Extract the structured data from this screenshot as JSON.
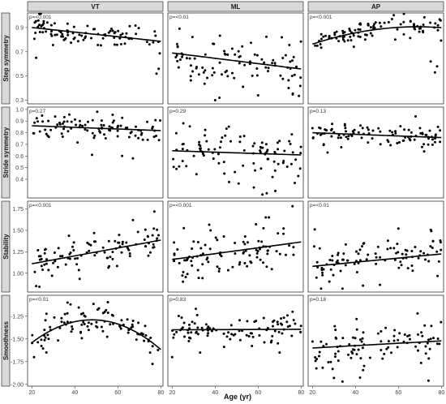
{
  "chart_data": {
    "type": "scatter",
    "xlabel": "Age (yr)",
    "x_ticks": [
      20,
      40,
      60,
      80
    ],
    "xlim": [
      18,
      81
    ],
    "columns": [
      "VT",
      "ML",
      "AP"
    ],
    "rows": [
      {
        "label": "Step symmetry",
        "ylim": [
          0.27,
          1.02
        ],
        "y_ticks": [
          "0.3",
          "0.5",
          "0.7",
          "0.9"
        ]
      },
      {
        "label": "Stride symmetry",
        "ylim": [
          0.24,
          1.02
        ],
        "y_ticks": [
          "0.4",
          "0.5",
          "0.6",
          "0.7",
          "0.8",
          "0.9",
          "1.0"
        ]
      },
      {
        "label": "Stability",
        "ylim": [
          0.78,
          1.84
        ],
        "y_ticks": [
          "1.00",
          "1.25",
          "1.50",
          "1.75"
        ]
      },
      {
        "label": "Smoothness",
        "ylim": [
          -2.02,
          -1.02
        ],
        "y_ticks": [
          "-2.00",
          "-1.75",
          "-1.50",
          "-1.25"
        ]
      }
    ],
    "panels": [
      {
        "row": 0,
        "col": 0,
        "p": "p=<0.001",
        "fit": [
          0.9,
          -0.0019,
          0
        ],
        "band": 0.085,
        "spread": 0.05,
        "seed": 11,
        "outliers": [
          [
            78,
            0.52
          ],
          [
            79,
            0.56
          ],
          [
            22,
            0.65
          ]
        ]
      },
      {
        "row": 0,
        "col": 1,
        "p": "p=<0.01",
        "fit": [
          0.69,
          -0.0022,
          0
        ],
        "band": 0.17,
        "spread": 0.1,
        "seed": 23,
        "outliers": [
          [
            40,
            0.3
          ],
          [
            42,
            0.32
          ],
          [
            60,
            0.34
          ]
        ]
      },
      {
        "row": 0,
        "col": 2,
        "p": "p=<0.001",
        "fit": [
          0.81,
          0.0025,
          -6e-05
        ],
        "band": 0.08,
        "spread": 0.045,
        "seed": 37,
        "outliers": [
          [
            77,
            0.53
          ],
          [
            78,
            0.58
          ],
          [
            75,
            0.62
          ]
        ]
      },
      {
        "row": 1,
        "col": 0,
        "p": "p=0.27",
        "fit": [
          0.86,
          -0.0007,
          0
        ],
        "band": 0.09,
        "spread": 0.055,
        "seed": 41,
        "outliers": [
          [
            48,
            0.61
          ],
          [
            62,
            0.6
          ],
          [
            67,
            0.58
          ]
        ]
      },
      {
        "row": 1,
        "col": 1,
        "p": "p=0.29",
        "fit": [
          0.645,
          -0.0006,
          0
        ],
        "band": 0.17,
        "spread": 0.11,
        "seed": 53,
        "outliers": [
          [
            62,
            0.27
          ],
          [
            64,
            0.28
          ],
          [
            68,
            0.3
          ]
        ]
      },
      {
        "row": 1,
        "col": 2,
        "p": "p=0.13",
        "fit": [
          0.8,
          -0.0007,
          0
        ],
        "band": 0.085,
        "spread": 0.05,
        "seed": 67,
        "outliers": [
          [
            27,
            0.63
          ],
          [
            72,
            0.64
          ],
          [
            68,
            0.94
          ]
        ]
      },
      {
        "row": 2,
        "col": 0,
        "p": "p=<0.001",
        "fit": [
          1.11,
          0.0046,
          0
        ],
        "band": 0.2,
        "spread": 0.11,
        "seed": 71,
        "outliers": [
          [
            77,
            1.72
          ],
          [
            22,
            0.85
          ],
          [
            67,
            1.62
          ]
        ]
      },
      {
        "row": 2,
        "col": 1,
        "p": "p=<0.001",
        "fit": [
          1.16,
          0.0034,
          0
        ],
        "band": 0.25,
        "spread": 0.14,
        "seed": 83,
        "outliers": [
          [
            76,
            1.78
          ],
          [
            59,
            1.57
          ],
          [
            25,
            0.9
          ]
        ]
      },
      {
        "row": 2,
        "col": 2,
        "p": "p=<0.01",
        "fit": [
          1.08,
          0.0024,
          0
        ],
        "band": 0.25,
        "spread": 0.14,
        "seed": 97,
        "outliers": [
          [
            60,
            1.52
          ],
          [
            24,
            0.82
          ],
          [
            34,
            0.82
          ]
        ]
      },
      {
        "row": 3,
        "col": 0,
        "p": "p=<0.01",
        "fit": [
          -1.29,
          0,
          -0.00032
        ],
        "band": 0.16,
        "spread": 0.09,
        "seed": 101,
        "outliers": [
          [
            21,
            -1.7
          ],
          [
            75,
            -1.65
          ],
          [
            38,
            -1.12
          ]
        ]
      },
      {
        "row": 3,
        "col": 1,
        "p": "p=0.83",
        "fit": [
          -1.4,
          0.0001,
          0
        ],
        "band": 0.14,
        "spread": 0.08,
        "seed": 113,
        "outliers": [
          [
            20,
            -1.7
          ],
          [
            33,
            -1.65
          ],
          [
            70,
            -1.65
          ]
        ]
      },
      {
        "row": 3,
        "col": 2,
        "p": "p=0.18",
        "fit": [
          -1.6,
          0.0013,
          0
        ],
        "band": 0.25,
        "spread": 0.15,
        "seed": 127,
        "outliers": [
          [
            34,
            -1.97
          ],
          [
            74,
            -1.96
          ],
          [
            30,
            -1.93
          ]
        ]
      }
    ]
  }
}
